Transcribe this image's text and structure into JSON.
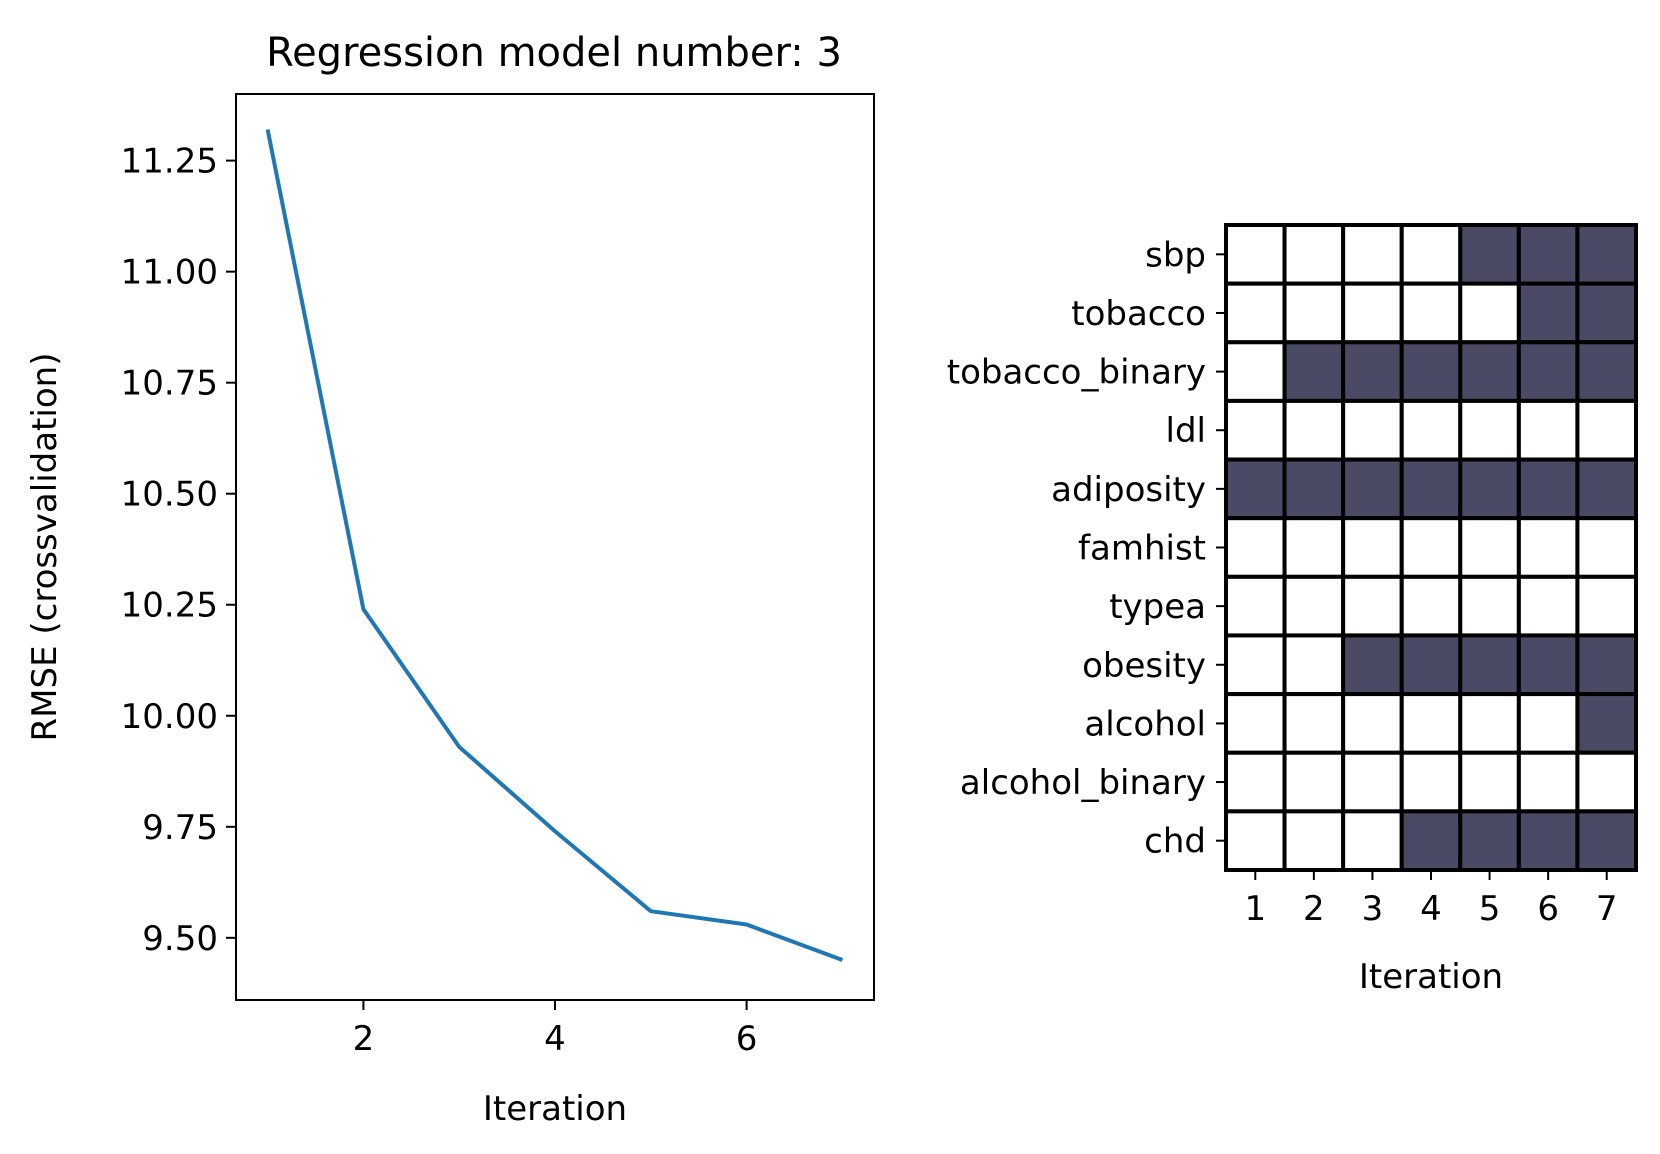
{
  "chart_data": [
    {
      "type": "line",
      "title": "Regression model number: 3",
      "xlabel": "Iteration",
      "ylabel": "RMSE (crossvalidation)",
      "xlim": [
        0.67,
        7.33
      ],
      "ylim": [
        9.36,
        11.4
      ],
      "x_ticks": [
        2,
        4,
        6
      ],
      "y_ticks": [
        9.5,
        9.75,
        10.0,
        10.25,
        10.5,
        10.75,
        11.0,
        11.25
      ],
      "y_tick_labels": [
        "9.50",
        "9.75",
        "10.00",
        "10.25",
        "10.50",
        "10.75",
        "11.00",
        "11.25"
      ],
      "grid": false,
      "series": [
        {
          "color": "#1f77b4",
          "x": [
            1,
            2,
            3,
            4,
            5,
            6,
            7
          ],
          "y": [
            11.32,
            10.24,
            9.93,
            9.74,
            9.56,
            9.53,
            9.45
          ]
        }
      ]
    },
    {
      "type": "heatmap",
      "xlabel": "Iteration",
      "x_ticks": [
        1,
        2,
        3,
        4,
        5,
        6,
        7
      ],
      "rows": [
        "sbp",
        "tobacco",
        "tobacco_binary",
        "ldl",
        "adiposity",
        "famhist",
        "typea",
        "obesity",
        "alcohol",
        "alcohol_binary",
        "chd"
      ],
      "selected_color": "#4a4a64",
      "unselected_color": "#ffffff",
      "values": [
        [
          0,
          0,
          0,
          0,
          1,
          1,
          1
        ],
        [
          0,
          0,
          0,
          0,
          0,
          1,
          1
        ],
        [
          0,
          1,
          1,
          1,
          1,
          1,
          1
        ],
        [
          0,
          0,
          0,
          0,
          0,
          0,
          0
        ],
        [
          1,
          1,
          1,
          1,
          1,
          1,
          1
        ],
        [
          0,
          0,
          0,
          0,
          0,
          0,
          0
        ],
        [
          0,
          0,
          0,
          0,
          0,
          0,
          0
        ],
        [
          0,
          0,
          1,
          1,
          1,
          1,
          1
        ],
        [
          0,
          0,
          0,
          0,
          0,
          0,
          1
        ],
        [
          0,
          0,
          0,
          0,
          0,
          0,
          0
        ],
        [
          0,
          0,
          0,
          1,
          1,
          1,
          1
        ]
      ]
    }
  ]
}
